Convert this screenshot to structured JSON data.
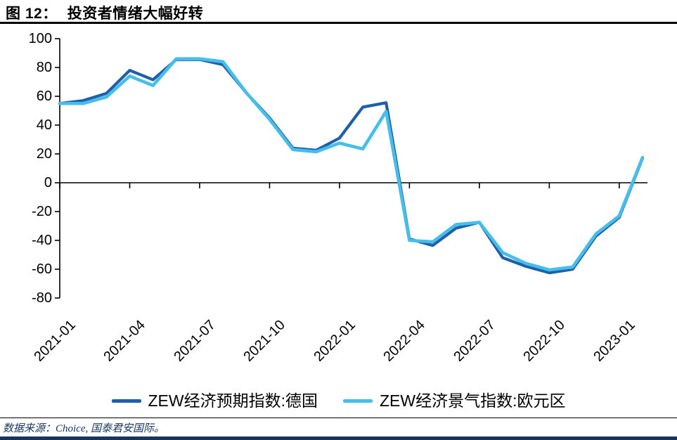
{
  "header": {
    "figure_label": "图 12：",
    "figure_title": "投资者情绪大幅好转"
  },
  "chart_data": {
    "type": "line",
    "title": "图 12：投资者情绪大幅好转",
    "xlabel": "",
    "ylabel": "",
    "ylim": [
      -80,
      100
    ],
    "grid": false,
    "legend_position": "bottom",
    "x": [
      "2021-01",
      "2021-02",
      "2021-03",
      "2021-04",
      "2021-05",
      "2021-06",
      "2021-07",
      "2021-08",
      "2021-09",
      "2021-10",
      "2021-11",
      "2021-12",
      "2022-01",
      "2022-02",
      "2022-03",
      "2022-04",
      "2022-05",
      "2022-06",
      "2022-07",
      "2022-08",
      "2022-09",
      "2022-10",
      "2022-11",
      "2022-12",
      "2023-01",
      "2023-02"
    ],
    "x_tick_labels": [
      "2021-01",
      "2021-04",
      "2021-07",
      "2021-10",
      "2022-01",
      "2022-04",
      "2022-07",
      "2022-10",
      "2023-01"
    ],
    "y_ticks": [
      100,
      80,
      60,
      40,
      20,
      0,
      -20,
      -40,
      -60,
      -80
    ],
    "series": [
      {
        "name": "ZEW经济预期指数:德国",
        "color": "#1F5FA8",
        "values": [
          55,
          57,
          62,
          78,
          71.5,
          85.5,
          85.5,
          82,
          62.5,
          45,
          24,
          22.5,
          31,
          52.5,
          55.5,
          -39,
          -43.5,
          -31.5,
          -27.5,
          -52,
          -58,
          -62.5,
          -60,
          -37,
          -24,
          17
        ]
      },
      {
        "name": "ZEW经济景气指数:欧元区",
        "color": "#45BEEC",
        "values": [
          55,
          55,
          59.5,
          74,
          67.5,
          86,
          86,
          84,
          62.5,
          44,
          23,
          21.5,
          27.5,
          23.5,
          49.5,
          -40,
          -41,
          -29,
          -27.5,
          -48.5,
          -56,
          -60.5,
          -58.5,
          -35.5,
          -23,
          17.5
        ]
      }
    ]
  },
  "footer": {
    "source_note": "数据来源：Choice, 国泰君安国际。"
  }
}
